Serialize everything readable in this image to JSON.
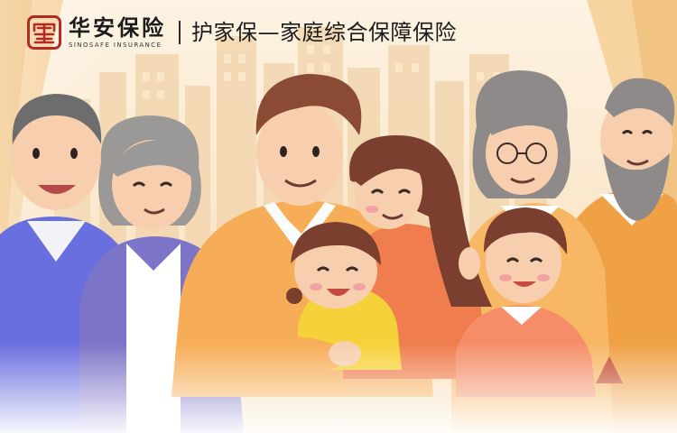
{
  "header": {
    "brand_name": "华安保险",
    "brand_en": "SINOSAFE INSURANCE",
    "product_title": "护家保—家庭综合保障保险"
  },
  "icons": {
    "logo": "sinosafe-seal-logo"
  },
  "colors": {
    "background": "#fdf0dc",
    "brand_red": "#b32a25",
    "text": "#1b1b1b"
  }
}
